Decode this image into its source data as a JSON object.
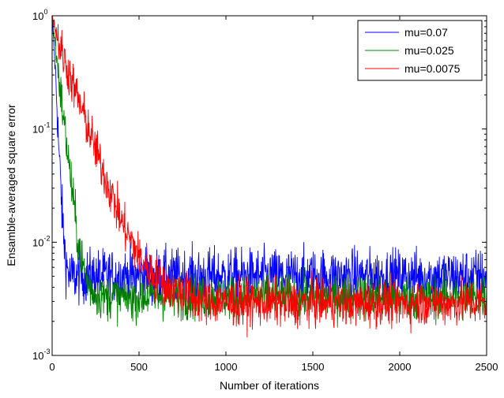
{
  "chart_data": {
    "type": "line",
    "title": "",
    "xlabel": "Number of iterations",
    "ylabel": "Ensamble-averaged square error",
    "xlim": [
      0,
      2500
    ],
    "ylim": [
      0.001,
      1
    ],
    "yscale": "log",
    "grid": false,
    "legend_position": "top-right",
    "x_ticks": [
      0,
      500,
      1000,
      1500,
      2000,
      2500
    ],
    "x_tick_labels": [
      "0",
      "500",
      "1000",
      "1500",
      "2000",
      "2500"
    ],
    "y_ticks": [
      {
        "value": 0.001,
        "base": "10",
        "exp": "-3"
      },
      {
        "value": 0.01,
        "base": "10",
        "exp": "-2"
      },
      {
        "value": 0.1,
        "base": "10",
        "exp": "-1"
      },
      {
        "value": 1,
        "base": "10",
        "exp": "0"
      }
    ],
    "series": [
      {
        "name": "mu=0.07",
        "color": "#0000ff",
        "x": [
          0,
          20,
          40,
          60,
          80,
          100,
          150,
          200,
          500,
          1000,
          1500,
          2000,
          2500
        ],
        "y": [
          1.0,
          0.3,
          0.06,
          0.015,
          0.0065,
          0.005,
          0.005,
          0.005,
          0.005,
          0.005,
          0.005,
          0.005,
          0.005
        ],
        "noise": 0.12
      },
      {
        "name": "mu=0.025",
        "color": "#008000",
        "x": [
          0,
          25,
          50,
          100,
          150,
          200,
          250,
          300,
          500,
          1000,
          1500,
          2000,
          2500
        ],
        "y": [
          1.0,
          0.45,
          0.2,
          0.045,
          0.01,
          0.0045,
          0.0035,
          0.0033,
          0.0033,
          0.0033,
          0.0033,
          0.0033,
          0.0033
        ],
        "noise": 0.1
      },
      {
        "name": "mu=0.0075",
        "color": "#ff0000",
        "x": [
          0,
          50,
          100,
          200,
          300,
          400,
          500,
          600,
          700,
          800,
          900,
          1000,
          1500,
          2000,
          2500
        ],
        "y": [
          1.0,
          0.5,
          0.3,
          0.11,
          0.04,
          0.015,
          0.0075,
          0.0048,
          0.0038,
          0.0032,
          0.003,
          0.0029,
          0.0029,
          0.0029,
          0.0029
        ],
        "noise": 0.1
      }
    ]
  }
}
